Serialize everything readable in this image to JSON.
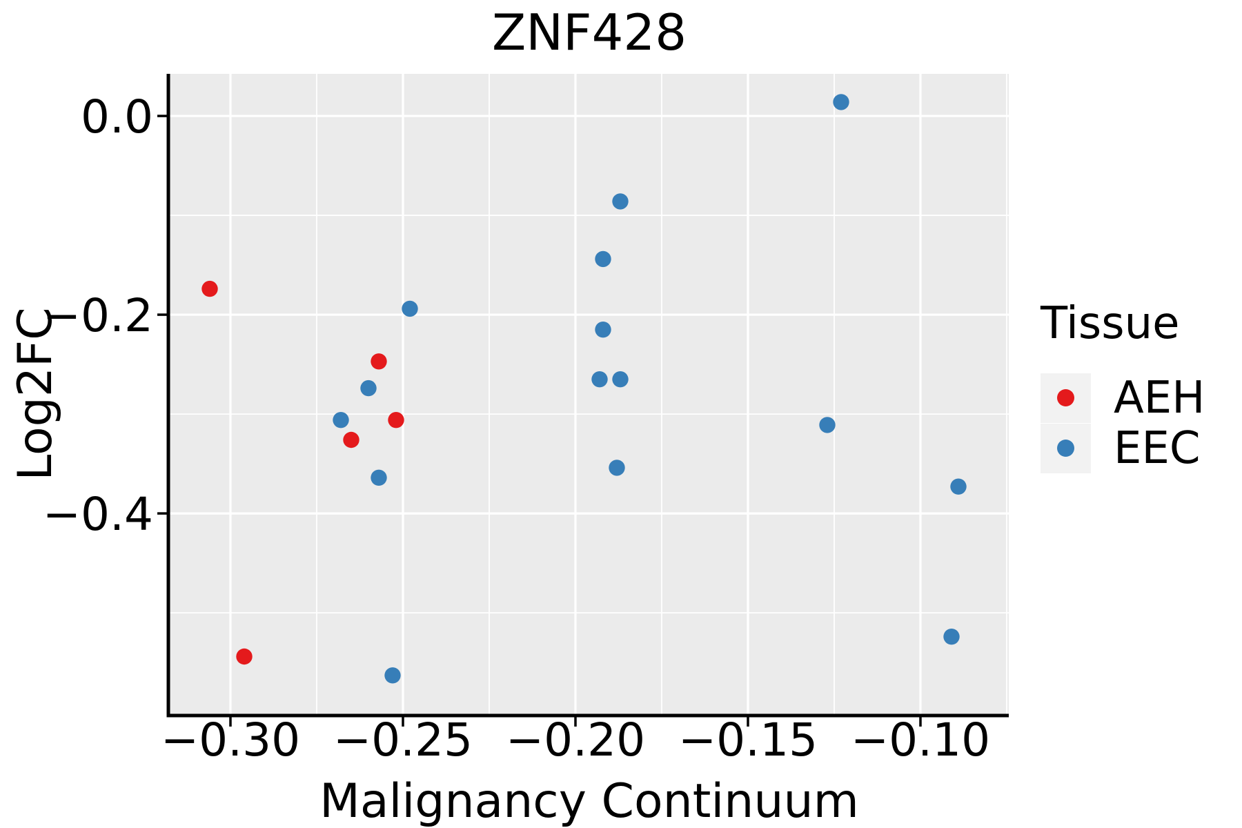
{
  "chart_data": {
    "type": "scatter",
    "title": "ZNF428",
    "xlabel": "Malignancy Continuum",
    "ylabel": "Log2FC",
    "xlim": [
      -0.3176,
      -0.0744
    ],
    "ylim": [
      -0.602,
      0.0424
    ],
    "grid": "white major and minor gridlines on gray panel, minor at midpoints",
    "legend_position": "right",
    "x_ticks": [
      {
        "value": -0.3,
        "label": "−0.30"
      },
      {
        "value": -0.25,
        "label": "−0.25"
      },
      {
        "value": -0.2,
        "label": "−0.20"
      },
      {
        "value": -0.15,
        "label": "−0.15"
      },
      {
        "value": -0.1,
        "label": "−0.10"
      }
    ],
    "y_ticks": [
      {
        "value": 0.0,
        "label": "0.0"
      },
      {
        "value": -0.2,
        "label": "−0.2"
      },
      {
        "value": -0.4,
        "label": "−0.4"
      }
    ],
    "legend": {
      "title": "Tissue",
      "entries": [
        {
          "label": "AEH",
          "color": "#E41A1C"
        },
        {
          "label": "EEC",
          "color": "#377EB8"
        }
      ]
    },
    "series": [
      {
        "name": "AEH",
        "color": "#E41A1C",
        "points": [
          {
            "x": -0.306,
            "y": -0.174
          },
          {
            "x": -0.257,
            "y": -0.247
          },
          {
            "x": -0.252,
            "y": -0.306
          },
          {
            "x": -0.265,
            "y": -0.326
          },
          {
            "x": -0.296,
            "y": -0.544
          }
        ]
      },
      {
        "name": "EEC",
        "color": "#377EB8",
        "points": [
          {
            "x": -0.248,
            "y": -0.194
          },
          {
            "x": -0.26,
            "y": -0.274
          },
          {
            "x": -0.268,
            "y": -0.306
          },
          {
            "x": -0.257,
            "y": -0.364
          },
          {
            "x": -0.253,
            "y": -0.563
          },
          {
            "x": -0.187,
            "y": -0.086
          },
          {
            "x": -0.192,
            "y": -0.144
          },
          {
            "x": -0.192,
            "y": -0.215
          },
          {
            "x": -0.193,
            "y": -0.265
          },
          {
            "x": -0.187,
            "y": -0.265
          },
          {
            "x": -0.188,
            "y": -0.354
          },
          {
            "x": -0.123,
            "y": 0.014
          },
          {
            "x": -0.127,
            "y": -0.311
          },
          {
            "x": -0.089,
            "y": -0.373
          },
          {
            "x": -0.091,
            "y": -0.524
          }
        ]
      }
    ],
    "colors": {
      "panel_background": "#EBEBEB",
      "gridline": "#FFFFFF",
      "axis_line": "#000000",
      "legend_key_background": "#F2F2F2",
      "text": "#000000"
    }
  }
}
